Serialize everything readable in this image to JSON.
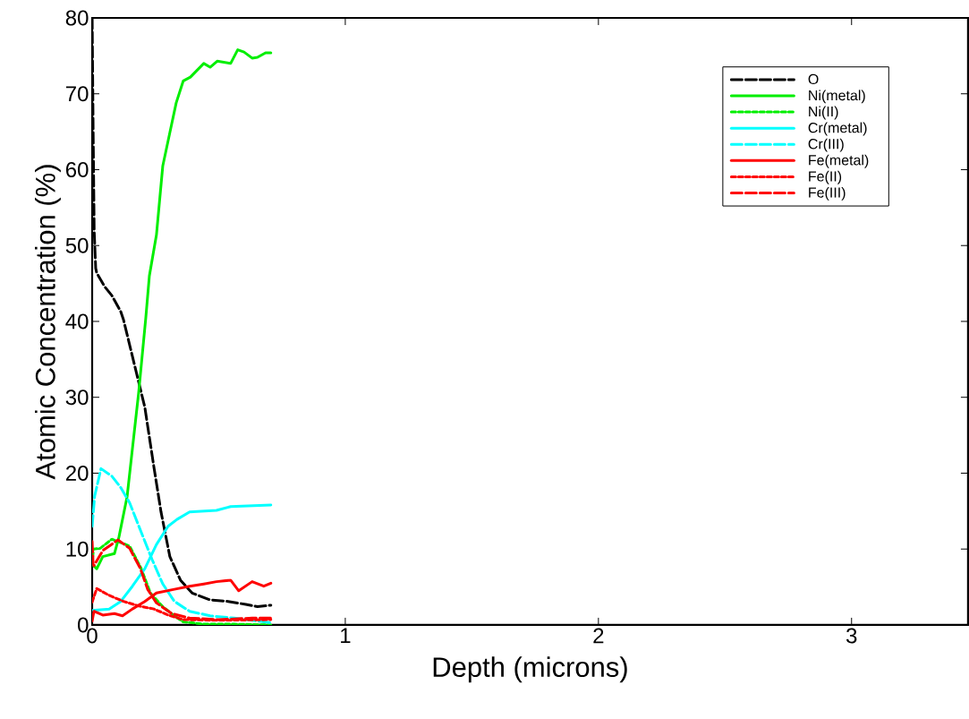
{
  "chart_data": {
    "type": "line",
    "xlabel": "Depth (microns)",
    "ylabel": "Atomic Concentration (%)",
    "xlim": [
      0,
      3.46
    ],
    "ylim": [
      0,
      80
    ],
    "xticks": [
      0,
      1,
      2,
      3
    ],
    "yticks": [
      0,
      10,
      20,
      30,
      40,
      50,
      60,
      70,
      80
    ],
    "legend": "top right",
    "series": [
      {
        "name": "O",
        "color": "#000000",
        "line_style": "dashed",
        "x": [
          0,
          0.004,
          0.008,
          0.014,
          0.018,
          0.049,
          0.078,
          0.113,
          0.124,
          0.159,
          0.208,
          0.244,
          0.272,
          0.307,
          0.349,
          0.395,
          0.466,
          0.537,
          0.607,
          0.653,
          0.706
        ],
        "values": [
          80,
          65,
          52,
          47,
          46.4,
          44.6,
          43.4,
          41.3,
          40.2,
          35.4,
          28.7,
          20.8,
          14.9,
          9.0,
          5.9,
          4.2,
          3.3,
          3.1,
          2.7,
          2.4,
          2.6
        ]
      },
      {
        "name": "Ni(metal)",
        "color": "#00ee00",
        "line_style": "solid",
        "x": [
          0,
          0.018,
          0.042,
          0.088,
          0.106,
          0.138,
          0.184,
          0.212,
          0.226,
          0.254,
          0.279,
          0.307,
          0.332,
          0.36,
          0.388,
          0.441,
          0.466,
          0.494,
          0.547,
          0.575,
          0.6,
          0.632,
          0.653,
          0.685,
          0.706
        ],
        "values": [
          8,
          7.4,
          9.0,
          9.4,
          11.6,
          16.9,
          30.7,
          40.5,
          46,
          51.4,
          60.5,
          64.9,
          68.8,
          71.7,
          72.2,
          74.0,
          73.5,
          74.3,
          74.0,
          75.8,
          75.5,
          74.7,
          74.8,
          75.4,
          75.4
        ]
      },
      {
        "name": "Ni(II)",
        "color": "#00ee00",
        "line_style": "dotted",
        "x": [
          0,
          0.005,
          0.032,
          0.078,
          0.148,
          0.194,
          0.23,
          0.279,
          0.325,
          0.36,
          0.441,
          0.561,
          0.706
        ],
        "values": [
          8,
          10,
          10.1,
          11.3,
          10.4,
          7.4,
          4.2,
          2.4,
          1.2,
          0.4,
          0.1,
          0.1,
          0
        ]
      },
      {
        "name": "Cr(metal)",
        "color": "#00ffff",
        "line_style": "solid",
        "x": [
          0,
          0.067,
          0.113,
          0.159,
          0.208,
          0.254,
          0.3,
          0.335,
          0.385,
          0.491,
          0.547,
          0.706
        ],
        "values": [
          1.9,
          2.1,
          3.1,
          5.1,
          7.4,
          10.6,
          13.0,
          13.9,
          14.9,
          15.1,
          15.6,
          15.8
        ]
      },
      {
        "name": "Cr(III)",
        "color": "#00ffff",
        "line_style": "dashed",
        "x": [
          0,
          0.01,
          0.035,
          0.078,
          0.113,
          0.148,
          0.194,
          0.237,
          0.279,
          0.325,
          0.385,
          0.466,
          0.561,
          0.702
        ],
        "values": [
          13,
          17,
          20.6,
          19.6,
          18.1,
          16.1,
          12.2,
          8.6,
          5.4,
          3.1,
          1.8,
          1.2,
          0.9,
          0.3
        ]
      },
      {
        "name": "Fe(metal)",
        "color": "#ff0000",
        "line_style": "solid",
        "x": [
          0,
          0.007,
          0.042,
          0.088,
          0.12,
          0.159,
          0.208,
          0.254,
          0.325,
          0.385,
          0.441,
          0.491,
          0.547,
          0.579,
          0.632,
          0.678,
          0.706
        ],
        "values": [
          0.5,
          1.8,
          1.3,
          1.5,
          1.2,
          2.1,
          3.1,
          4.2,
          4.7,
          5.1,
          5.4,
          5.7,
          5.9,
          4.5,
          5.7,
          5.1,
          5.5
        ]
      },
      {
        "name": "Fe(II)",
        "color": "#ff0000",
        "line_style": "dotted",
        "x": [
          0,
          0.018,
          0.067,
          0.124,
          0.184,
          0.244,
          0.3,
          0.36,
          0.501,
          0.706
        ],
        "values": [
          3,
          4.8,
          3.9,
          3.1,
          2.5,
          2.1,
          1.3,
          0.7,
          0.6,
          0.7
        ]
      },
      {
        "name": "Fe(III)",
        "color": "#ff0000",
        "line_style": "dashed",
        "x": [
          0,
          0.004,
          0.007,
          0.042,
          0.102,
          0.148,
          0.191,
          0.219,
          0.254,
          0.314,
          0.385,
          0.501,
          0.632,
          0.706
        ],
        "values": [
          11,
          8,
          7.8,
          9.8,
          11.2,
          10.1,
          7.4,
          4.7,
          2.9,
          1.5,
          0.9,
          0.7,
          0.9,
          0.9
        ]
      }
    ]
  }
}
